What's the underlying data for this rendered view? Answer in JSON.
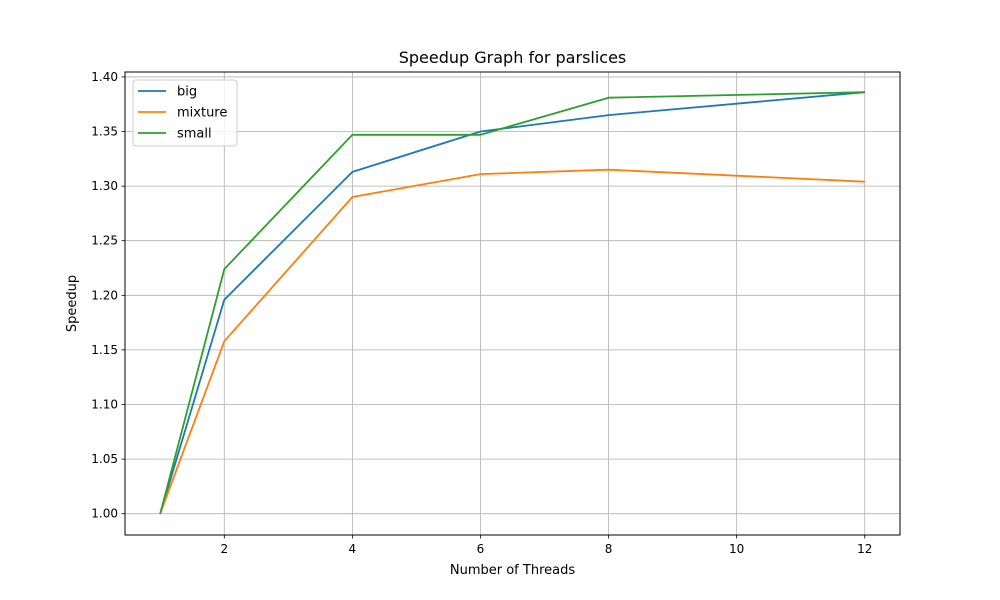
{
  "chart_data": {
    "type": "line",
    "title": "Speedup Graph for parslices",
    "xlabel": "Number of Threads",
    "ylabel": "Speedup",
    "xlim": [
      0.45,
      12.55
    ],
    "ylim": [
      0.9805,
      1.4045
    ],
    "xticks": [
      2,
      4,
      6,
      8,
      10,
      12
    ],
    "xtick_labels": [
      "2",
      "4",
      "6",
      "8",
      "10",
      "12"
    ],
    "yticks": [
      1.0,
      1.05,
      1.1,
      1.15,
      1.2,
      1.25,
      1.3,
      1.35,
      1.4
    ],
    "ytick_labels": [
      "1.00",
      "1.05",
      "1.10",
      "1.15",
      "1.20",
      "1.25",
      "1.30",
      "1.35",
      "1.40"
    ],
    "grid": true,
    "legend_position": "top-left",
    "x": [
      1,
      2,
      4,
      6,
      8,
      12
    ],
    "series": [
      {
        "name": "big",
        "color": "#1f77b4",
        "values": [
          1.0,
          1.196,
          1.313,
          1.35,
          1.365,
          1.386
        ]
      },
      {
        "name": "mixture",
        "color": "#ff7f0e",
        "values": [
          1.0,
          1.158,
          1.29,
          1.311,
          1.315,
          1.304
        ]
      },
      {
        "name": "small",
        "color": "#2ca02c",
        "values": [
          1.0,
          1.224,
          1.347,
          1.347,
          1.381,
          1.386
        ]
      }
    ]
  }
}
